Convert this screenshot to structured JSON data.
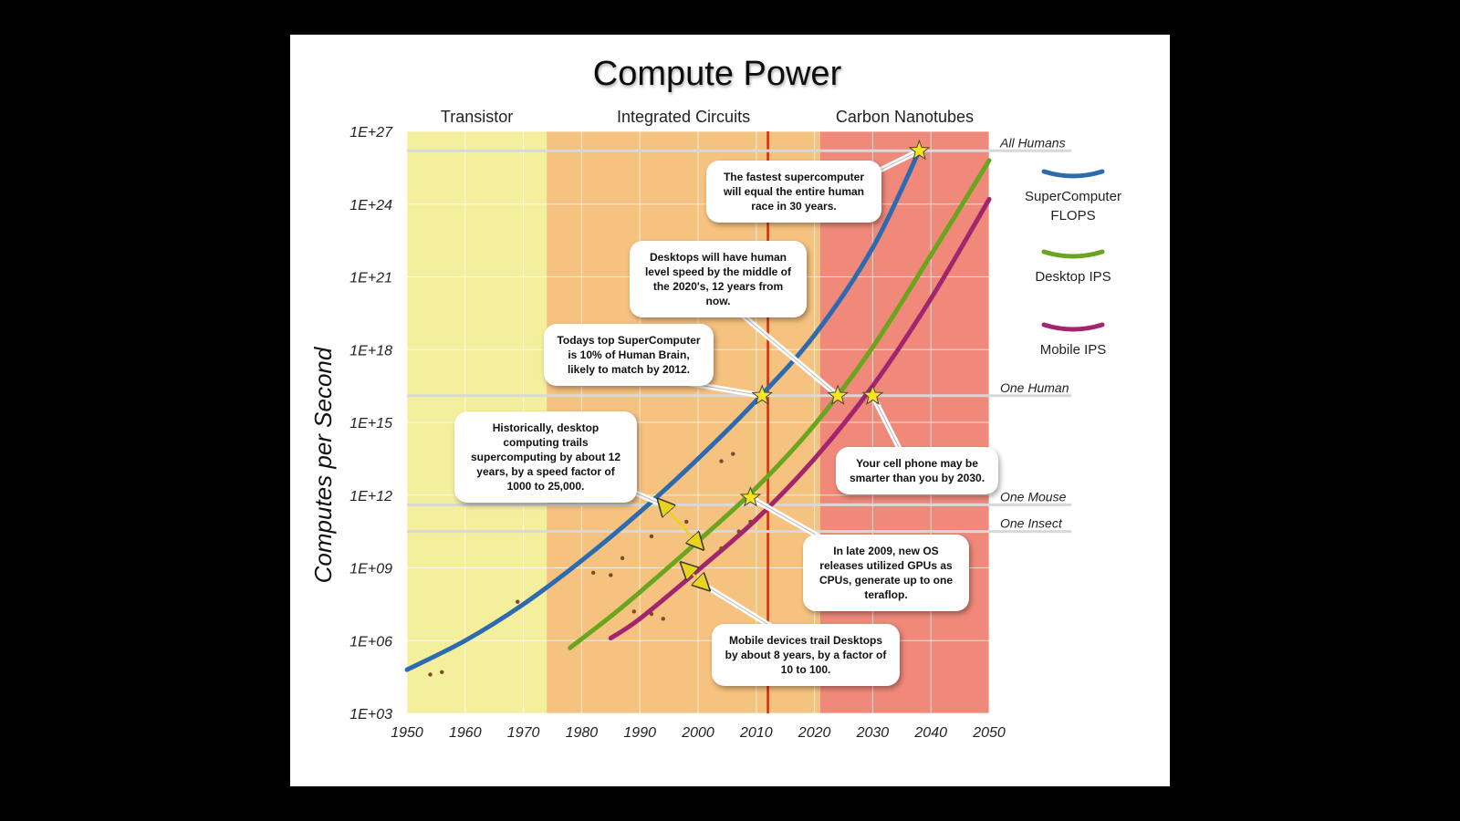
{
  "chart_data": {
    "type": "line",
    "title": "Compute Power",
    "ylabel": "Computes per Second",
    "xlabel": "",
    "y_scale": "log10",
    "xlim": [
      1950,
      2050
    ],
    "ylim_exponent": [
      3,
      27
    ],
    "x_ticks": [
      1950,
      1960,
      1970,
      1980,
      1990,
      2000,
      2010,
      2020,
      2030,
      2040,
      2050
    ],
    "y_ticks": [
      {
        "exp": 3,
        "label": "1E+03"
      },
      {
        "exp": 6,
        "label": "1E+06"
      },
      {
        "exp": 9,
        "label": "1E+09"
      },
      {
        "exp": 12,
        "label": "1E+12"
      },
      {
        "exp": 15,
        "label": "1E+15"
      },
      {
        "exp": 18,
        "label": "1E+18"
      },
      {
        "exp": 21,
        "label": "1E+21"
      },
      {
        "exp": 24,
        "label": "1E+24"
      },
      {
        "exp": 27,
        "label": "1E+27"
      }
    ],
    "eras": [
      {
        "label": "Transistor",
        "start": 1950,
        "end": 1974,
        "color": "#f3ef9c"
      },
      {
        "label": "Integrated Circuits",
        "start": 1974,
        "end": 2021,
        "color": "#f6c27f"
      },
      {
        "label": "Carbon Nanotubes",
        "start": 2021,
        "end": 2050,
        "color": "#f0897a"
      }
    ],
    "now_line": {
      "year": 2012,
      "color": "#d42a10"
    },
    "reference_lines": [
      {
        "label": "All Humans",
        "exp": 26.2
      },
      {
        "label": "One Human",
        "exp": 16.1
      },
      {
        "label": "One Mouse",
        "exp": 11.6
      },
      {
        "label": "One Insect",
        "exp": 10.5
      }
    ],
    "series": [
      {
        "name": "SuperComputer FLOPS",
        "color": "#2d6bb0",
        "points": [
          [
            1950,
            4.8
          ],
          [
            1960,
            6.0
          ],
          [
            1970,
            7.5
          ],
          [
            1980,
            9.3
          ],
          [
            1990,
            11.3
          ],
          [
            2000,
            13.5
          ],
          [
            2010,
            15.9
          ],
          [
            2020,
            18.6
          ],
          [
            2030,
            22.2
          ],
          [
            2038,
            26.2
          ]
        ]
      },
      {
        "name": "Desktop IPS",
        "color": "#6aa51e",
        "points": [
          [
            1978,
            5.7
          ],
          [
            1985,
            7.0
          ],
          [
            1990,
            8.0
          ],
          [
            2000,
            10.1
          ],
          [
            2010,
            12.3
          ],
          [
            2020,
            14.9
          ],
          [
            2030,
            18.1
          ],
          [
            2040,
            21.9
          ],
          [
            2050,
            25.8
          ]
        ]
      },
      {
        "name": "Mobile IPS",
        "color": "#a3256e",
        "points": [
          [
            1985,
            6.1
          ],
          [
            1990,
            6.9
          ],
          [
            2000,
            8.9
          ],
          [
            2010,
            11.0
          ],
          [
            2020,
            13.5
          ],
          [
            2030,
            16.5
          ],
          [
            2040,
            20.1
          ],
          [
            2050,
            24.2
          ]
        ]
      }
    ],
    "scatter": {
      "name": "observed",
      "color": "#7a4a2a",
      "points": [
        [
          1954,
          4.6
        ],
        [
          1956,
          4.7
        ],
        [
          1969,
          7.6
        ],
        [
          1985,
          8.7
        ],
        [
          1987,
          9.4
        ],
        [
          1992,
          10.3
        ],
        [
          1998,
          10.9
        ],
        [
          2004,
          13.4
        ],
        [
          2006,
          13.7
        ],
        [
          1982,
          8.8
        ],
        [
          1989,
          7.2
        ],
        [
          1992,
          7.1
        ],
        [
          1994,
          6.9
        ],
        [
          2004,
          9.8
        ],
        [
          2007,
          10.5
        ],
        [
          2009,
          10.9
        ]
      ]
    },
    "stars": [
      {
        "year": 2038,
        "exp": 26.2
      },
      {
        "year": 2011,
        "exp": 16.1
      },
      {
        "year": 2024,
        "exp": 16.1
      },
      {
        "year": 2030,
        "exp": 16.1
      },
      {
        "year": 2009,
        "exp": 11.9
      }
    ],
    "gap_arrows": [
      {
        "from": [
          1994,
          11.6
        ],
        "to": [
          2000,
          10.0
        ]
      },
      {
        "from": [
          1998,
          9.0
        ],
        "to": [
          2001,
          8.3
        ]
      }
    ],
    "legend": [
      {
        "label_lines": [
          "SuperComputer",
          "FLOPS"
        ],
        "color": "#2d6bb0"
      },
      {
        "label_lines": [
          "Desktop IPS"
        ],
        "color": "#6aa51e"
      },
      {
        "label_lines": [
          "Mobile IPS"
        ],
        "color": "#a3256e"
      }
    ],
    "annotations": [
      {
        "id": "fastest",
        "text": "The fastest supercomputer will equal the entire human race in 30 years.",
        "target": [
          2038,
          26.2
        ]
      },
      {
        "id": "desktops",
        "text": "Desktops will have human level speed by the middle of the 2020's, 12 years from now.",
        "target": [
          2024,
          16.1
        ]
      },
      {
        "id": "todays",
        "text": "Todays top SuperComputer is 10% of Human Brain, likely to match by 2012.",
        "target": [
          2011,
          16.1
        ]
      },
      {
        "id": "historically",
        "text": "Historically, desktop computing trails supercomputing by about 12 years, by a speed factor of 1000 to 25,000.",
        "target": [
          1994,
          11.6
        ]
      },
      {
        "id": "cellphone",
        "text": "Your cell phone may be smarter than you by 2030.",
        "target": [
          2030,
          16.1
        ]
      },
      {
        "id": "late2009",
        "text": "In late 2009, new OS releases utilized GPUs as CPUs, generate up to one teraflop.",
        "target": [
          2009,
          11.9
        ]
      },
      {
        "id": "mobile",
        "text": "Mobile devices trail Desktops by about 8 years, by a factor of 10 to 100.",
        "target": [
          2001,
          8.3
        ]
      }
    ]
  }
}
